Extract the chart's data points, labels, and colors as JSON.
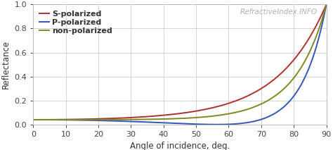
{
  "title": "",
  "watermark": "RefractiveIndex.INFO",
  "watermark_color": "#b0b0b0",
  "xlabel": "Angle of incidence, deg.",
  "ylabel": "Reflectance",
  "xlim": [
    0,
    90
  ],
  "ylim": [
    0,
    1
  ],
  "xticks": [
    0,
    10,
    20,
    30,
    40,
    50,
    60,
    70,
    80,
    90
  ],
  "yticks": [
    0,
    0.2,
    0.4,
    0.6,
    0.8,
    1.0
  ],
  "n": 1.5,
  "legend": [
    "S-polarized",
    "P-polarized",
    "non-polarized"
  ],
  "colors": [
    "#b03030",
    "#3355bb",
    "#808820"
  ],
  "background_color": "#ffffff",
  "plot_bg_color": "#ffffff",
  "grid_color": "#cccccc",
  "linewidth": 1.4,
  "legend_fontsize": 8,
  "axis_fontsize": 8.5,
  "tick_fontsize": 8,
  "watermark_fontsize": 7.5
}
